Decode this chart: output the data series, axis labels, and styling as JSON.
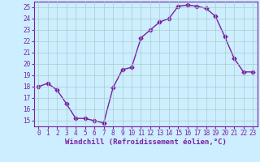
{
  "x": [
    0,
    1,
    2,
    3,
    4,
    5,
    6,
    7,
    8,
    9,
    10,
    11,
    12,
    13,
    14,
    15,
    16,
    17,
    18,
    19,
    20,
    21,
    22,
    23
  ],
  "y": [
    18.0,
    18.3,
    17.7,
    16.5,
    15.2,
    15.2,
    15.0,
    14.8,
    17.9,
    19.5,
    19.7,
    22.3,
    23.0,
    23.7,
    24.0,
    25.1,
    25.2,
    25.1,
    24.9,
    24.2,
    22.4,
    20.5,
    19.3,
    19.3
  ],
  "line_color": "#7B1FA2",
  "marker": "D",
  "marker_size": 2.5,
  "bg_color": "#cceeff",
  "grid_color": "#aacccc",
  "xlabel": "Windchill (Refroidissement éolien,°C)",
  "xlim": [
    -0.5,
    23.5
  ],
  "ylim": [
    14.5,
    25.5
  ],
  "yticks": [
    15,
    16,
    17,
    18,
    19,
    20,
    21,
    22,
    23,
    24,
    25
  ],
  "xticks": [
    0,
    1,
    2,
    3,
    4,
    5,
    6,
    7,
    8,
    9,
    10,
    11,
    12,
    13,
    14,
    15,
    16,
    17,
    18,
    19,
    20,
    21,
    22,
    23
  ],
  "tick_fontsize": 5.5,
  "label_fontsize": 6.5,
  "linewidth": 1.0
}
